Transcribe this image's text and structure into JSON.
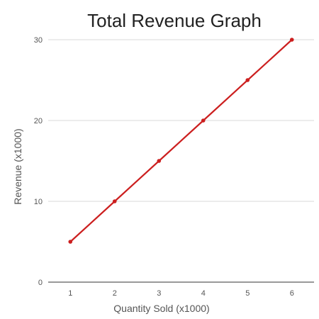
{
  "chart_data": {
    "type": "line",
    "title": "Total Revenue Graph",
    "xlabel": "Quantity Sold (x1000)",
    "ylabel": "Revenue (x1000)",
    "x": [
      1,
      2,
      3,
      4,
      5,
      6
    ],
    "series": [
      {
        "values": [
          5,
          10,
          15,
          20,
          25,
          30
        ],
        "color": "#cc1f1f"
      }
    ],
    "xlim": [
      0.5,
      6.5
    ],
    "ylim": [
      0,
      30
    ],
    "x_ticks": [
      "1",
      "2",
      "3",
      "4",
      "5",
      "6"
    ],
    "y_ticks": [
      "0",
      "10",
      "20",
      "30"
    ],
    "grid": "horizontal",
    "legend": "none"
  }
}
